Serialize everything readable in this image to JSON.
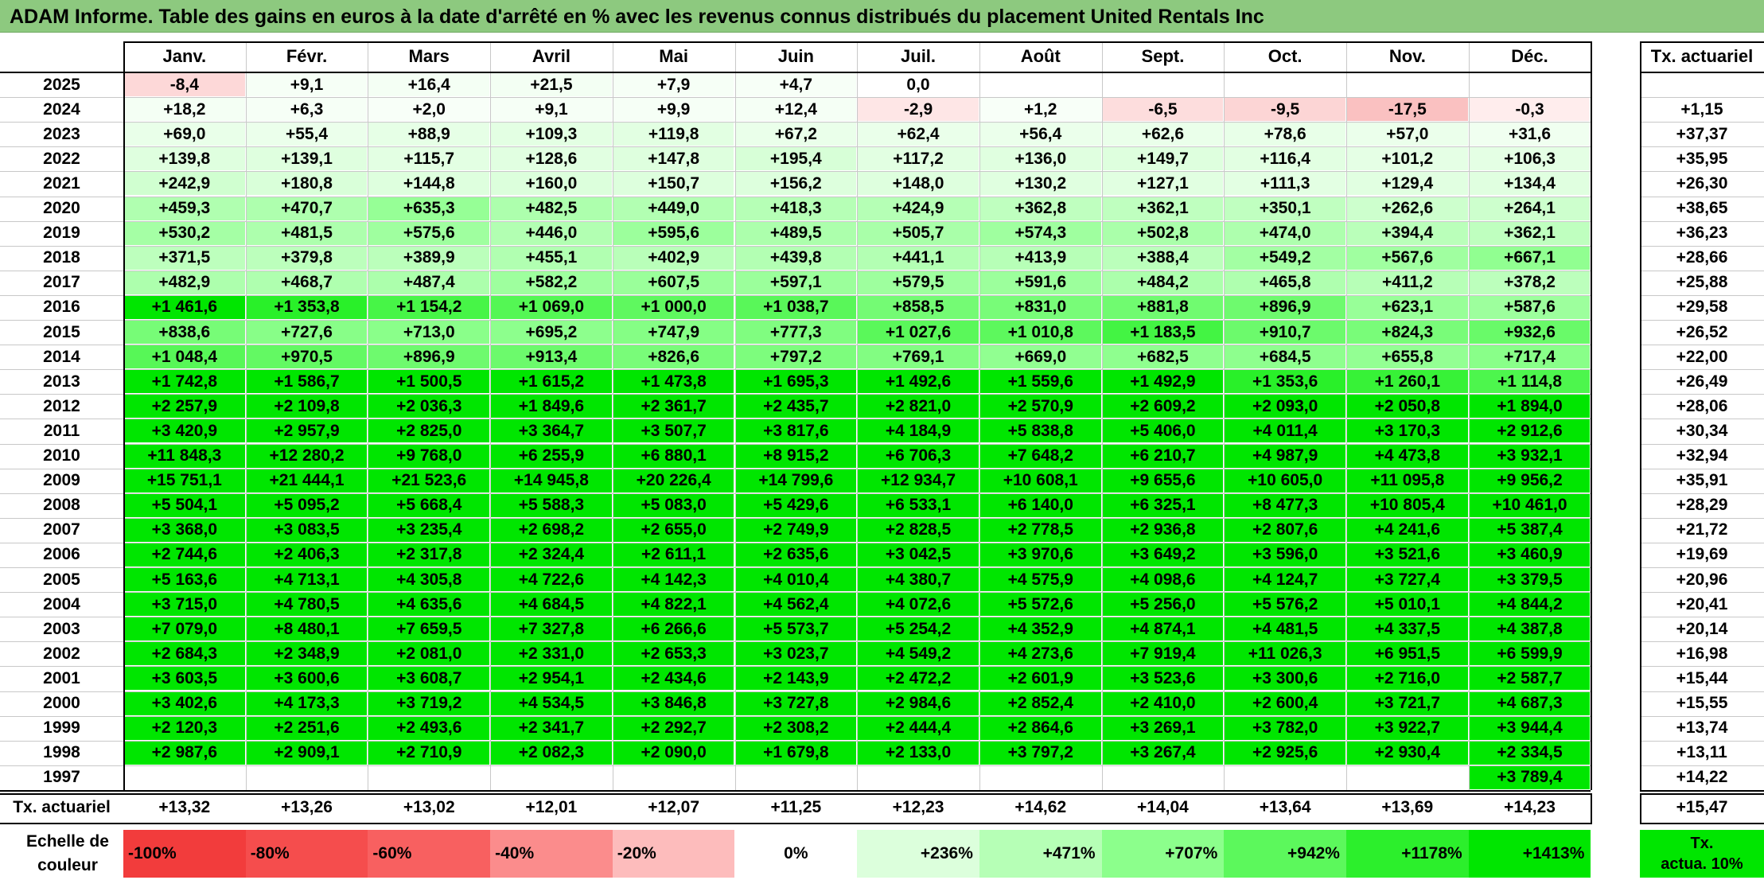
{
  "title": "ADAM Informe. Table des gains en euros à la date d'arrêté en % avec les revenus connus distribués du placement United Rentals Inc",
  "colors": {
    "title_bg": "#8dc97f",
    "neg_strong": "#f23c3c",
    "neg_light": "#ffe8e8",
    "pos_light": "#eaffea",
    "pos_strong": "#00e600"
  },
  "chart_data": {
    "type": "heatmap",
    "title": "ADAM Informe. Table des gains en euros à la date d'arrêté en % avec les revenus connus distribués du placement United Rentals Inc",
    "columns": [
      "Janv.",
      "Févr.",
      "Mars",
      "Avril",
      "Mai",
      "Juin",
      "Juil.",
      "Août",
      "Sept.",
      "Oct.",
      "Nov.",
      "Déc."
    ],
    "tx_header": "Tx. actuariel",
    "rows": [
      {
        "year": "2025",
        "cells": [
          "-8,4",
          "+9,1",
          "+16,4",
          "+21,5",
          "+7,9",
          "+4,7",
          "0,0",
          "",
          "",
          "",
          "",
          ""
        ],
        "tx": ""
      },
      {
        "year": "2024",
        "cells": [
          "+18,2",
          "+6,3",
          "+2,0",
          "+9,1",
          "+9,9",
          "+12,4",
          "-2,9",
          "+1,2",
          "-6,5",
          "-9,5",
          "-17,5",
          "-0,3"
        ],
        "tx": "+1,15"
      },
      {
        "year": "2023",
        "cells": [
          "+69,0",
          "+55,4",
          "+88,9",
          "+109,3",
          "+119,8",
          "+67,2",
          "+62,4",
          "+56,4",
          "+62,6",
          "+78,6",
          "+57,0",
          "+31,6"
        ],
        "tx": "+37,37"
      },
      {
        "year": "2022",
        "cells": [
          "+139,8",
          "+139,1",
          "+115,7",
          "+128,6",
          "+147,8",
          "+195,4",
          "+117,2",
          "+136,0",
          "+149,7",
          "+116,4",
          "+101,2",
          "+106,3"
        ],
        "tx": "+35,95"
      },
      {
        "year": "2021",
        "cells": [
          "+242,9",
          "+180,8",
          "+144,8",
          "+160,0",
          "+150,7",
          "+156,2",
          "+148,0",
          "+130,2",
          "+127,1",
          "+111,3",
          "+129,4",
          "+134,4"
        ],
        "tx": "+26,30"
      },
      {
        "year": "2020",
        "cells": [
          "+459,3",
          "+470,7",
          "+635,3",
          "+482,5",
          "+449,0",
          "+418,3",
          "+424,9",
          "+362,8",
          "+362,1",
          "+350,1",
          "+262,6",
          "+264,1"
        ],
        "tx": "+38,65"
      },
      {
        "year": "2019",
        "cells": [
          "+530,2",
          "+481,5",
          "+575,6",
          "+446,0",
          "+595,6",
          "+489,5",
          "+505,7",
          "+574,3",
          "+502,8",
          "+474,0",
          "+394,4",
          "+362,1"
        ],
        "tx": "+36,23"
      },
      {
        "year": "2018",
        "cells": [
          "+371,5",
          "+379,8",
          "+389,9",
          "+455,1",
          "+402,9",
          "+439,8",
          "+441,1",
          "+413,9",
          "+388,4",
          "+549,2",
          "+567,6",
          "+667,1"
        ],
        "tx": "+28,66"
      },
      {
        "year": "2017",
        "cells": [
          "+482,9",
          "+468,7",
          "+487,4",
          "+582,2",
          "+607,5",
          "+597,1",
          "+579,5",
          "+591,6",
          "+484,2",
          "+465,8",
          "+411,2",
          "+378,2"
        ],
        "tx": "+25,88"
      },
      {
        "year": "2016",
        "cells": [
          "+1 461,6",
          "+1 353,8",
          "+1 154,2",
          "+1 069,0",
          "+1 000,0",
          "+1 038,7",
          "+858,5",
          "+831,0",
          "+881,8",
          "+896,9",
          "+623,1",
          "+587,6"
        ],
        "tx": "+29,58"
      },
      {
        "year": "2015",
        "cells": [
          "+838,6",
          "+727,6",
          "+713,0",
          "+695,2",
          "+747,9",
          "+777,3",
          "+1 027,6",
          "+1 010,8",
          "+1 183,5",
          "+910,7",
          "+824,3",
          "+932,6"
        ],
        "tx": "+26,52"
      },
      {
        "year": "2014",
        "cells": [
          "+1 048,4",
          "+970,5",
          "+896,9",
          "+913,4",
          "+826,6",
          "+797,2",
          "+769,1",
          "+669,0",
          "+682,5",
          "+684,5",
          "+655,8",
          "+717,4"
        ],
        "tx": "+22,00"
      },
      {
        "year": "2013",
        "cells": [
          "+1 742,8",
          "+1 586,7",
          "+1 500,5",
          "+1 615,2",
          "+1 473,8",
          "+1 695,3",
          "+1 492,6",
          "+1 559,6",
          "+1 492,9",
          "+1 353,6",
          "+1 260,1",
          "+1 114,8"
        ],
        "tx": "+26,49"
      },
      {
        "year": "2012",
        "cells": [
          "+2 257,9",
          "+2 109,8",
          "+2 036,3",
          "+1 849,6",
          "+2 361,7",
          "+2 435,7",
          "+2 821,0",
          "+2 570,9",
          "+2 609,2",
          "+2 093,0",
          "+2 050,8",
          "+1 894,0"
        ],
        "tx": "+28,06"
      },
      {
        "year": "2011",
        "cells": [
          "+3 420,9",
          "+2 957,9",
          "+2 825,0",
          "+3 364,7",
          "+3 507,7",
          "+3 817,6",
          "+4 184,9",
          "+5 838,8",
          "+5 406,0",
          "+4 011,4",
          "+3 170,3",
          "+2 912,6"
        ],
        "tx": "+30,34"
      },
      {
        "year": "2010",
        "cells": [
          "+11 848,3",
          "+12 280,2",
          "+9 768,0",
          "+6 255,9",
          "+6 880,1",
          "+8 915,2",
          "+6 706,3",
          "+7 648,2",
          "+6 210,7",
          "+4 987,9",
          "+4 473,8",
          "+3 932,1"
        ],
        "tx": "+32,94"
      },
      {
        "year": "2009",
        "cells": [
          "+15 751,1",
          "+21 444,1",
          "+21 523,6",
          "+14 945,8",
          "+20 226,4",
          "+14 799,6",
          "+12 934,7",
          "+10 608,1",
          "+9 655,6",
          "+10 605,0",
          "+11 095,8",
          "+9 956,2"
        ],
        "tx": "+35,91"
      },
      {
        "year": "2008",
        "cells": [
          "+5 504,1",
          "+5 095,2",
          "+5 668,4",
          "+5 588,3",
          "+5 083,0",
          "+5 429,6",
          "+6 533,1",
          "+6 140,0",
          "+6 325,1",
          "+8 477,3",
          "+10 805,4",
          "+10 461,0"
        ],
        "tx": "+28,29"
      },
      {
        "year": "2007",
        "cells": [
          "+3 368,0",
          "+3 083,5",
          "+3 235,4",
          "+2 698,2",
          "+2 655,0",
          "+2 749,9",
          "+2 828,5",
          "+2 778,5",
          "+2 936,8",
          "+2 807,6",
          "+4 241,6",
          "+5 387,4"
        ],
        "tx": "+21,72"
      },
      {
        "year": "2006",
        "cells": [
          "+2 744,6",
          "+2 406,3",
          "+2 317,8",
          "+2 324,4",
          "+2 611,1",
          "+2 635,6",
          "+3 042,5",
          "+3 970,6",
          "+3 649,2",
          "+3 596,0",
          "+3 521,6",
          "+3 460,9"
        ],
        "tx": "+19,69"
      },
      {
        "year": "2005",
        "cells": [
          "+5 163,6",
          "+4 713,1",
          "+4 305,8",
          "+4 722,6",
          "+4 142,3",
          "+4 010,4",
          "+4 380,7",
          "+4 575,9",
          "+4 098,6",
          "+4 124,7",
          "+3 727,4",
          "+3 379,5"
        ],
        "tx": "+20,96"
      },
      {
        "year": "2004",
        "cells": [
          "+3 715,0",
          "+4 780,5",
          "+4 635,6",
          "+4 684,5",
          "+4 822,1",
          "+4 562,4",
          "+4 072,6",
          "+5 572,6",
          "+5 256,0",
          "+5 576,2",
          "+5 010,1",
          "+4 844,2"
        ],
        "tx": "+20,41"
      },
      {
        "year": "2003",
        "cells": [
          "+7 079,0",
          "+8 480,1",
          "+7 659,5",
          "+7 327,8",
          "+6 266,6",
          "+5 573,7",
          "+5 254,2",
          "+4 352,9",
          "+4 874,1",
          "+4 481,5",
          "+4 337,5",
          "+4 387,8"
        ],
        "tx": "+20,14"
      },
      {
        "year": "2002",
        "cells": [
          "+2 684,3",
          "+2 348,9",
          "+2 081,0",
          "+2 331,0",
          "+2 653,3",
          "+3 023,7",
          "+4 549,2",
          "+4 273,6",
          "+7 919,4",
          "+11 026,3",
          "+6 951,5",
          "+6 599,9"
        ],
        "tx": "+16,98"
      },
      {
        "year": "2001",
        "cells": [
          "+3 603,5",
          "+3 600,6",
          "+3 608,7",
          "+2 954,1",
          "+2 434,6",
          "+2 143,9",
          "+2 472,2",
          "+2 601,9",
          "+3 523,6",
          "+3 300,6",
          "+2 716,0",
          "+2 587,7"
        ],
        "tx": "+15,44"
      },
      {
        "year": "2000",
        "cells": [
          "+3 402,6",
          "+4 173,3",
          "+3 719,2",
          "+4 534,5",
          "+3 846,8",
          "+3 727,8",
          "+2 984,6",
          "+2 852,4",
          "+2 410,0",
          "+2 600,4",
          "+3 721,7",
          "+4 687,3"
        ],
        "tx": "+15,55"
      },
      {
        "year": "1999",
        "cells": [
          "+2 120,3",
          "+2 251,6",
          "+2 493,6",
          "+2 341,7",
          "+2 292,7",
          "+2 308,2",
          "+2 444,4",
          "+2 864,6",
          "+3 269,1",
          "+3 782,0",
          "+3 922,7",
          "+3 944,4"
        ],
        "tx": "+13,74"
      },
      {
        "year": "1998",
        "cells": [
          "+2 987,6",
          "+2 909,1",
          "+2 710,9",
          "+2 082,3",
          "+2 090,0",
          "+1 679,8",
          "+2 133,0",
          "+3 797,2",
          "+3 267,4",
          "+2 925,6",
          "+2 930,4",
          "+2 334,5"
        ],
        "tx": "+13,11"
      },
      {
        "year": "1997",
        "cells": [
          "",
          "",
          "",
          "",
          "",
          "",
          "",
          "",
          "",
          "",
          "",
          "+3 789,4"
        ],
        "tx": "+14,22"
      }
    ],
    "footer": {
      "label": "Tx. actuariel",
      "cells": [
        "+13,32",
        "+13,26",
        "+13,02",
        "+12,01",
        "+12,07",
        "+11,25",
        "+12,23",
        "+14,62",
        "+14,04",
        "+13,64",
        "+13,69",
        "+14,23"
      ],
      "tx": "+15,47"
    },
    "scale": {
      "label_line1": "Echelle de",
      "label_line2": "couleur",
      "steps": [
        {
          "label": "-100%",
          "value": -100,
          "color": "#f23c3c"
        },
        {
          "label": "-80%",
          "value": -80,
          "color": "#f54d4d"
        },
        {
          "label": "-60%",
          "value": -60,
          "color": "#f86060"
        },
        {
          "label": "-40%",
          "value": -40,
          "color": "#fb8c8c"
        },
        {
          "label": "-20%",
          "value": -20,
          "color": "#fdbcbc"
        },
        {
          "label": "0%",
          "value": 0,
          "color": "#ffffff"
        },
        {
          "label": "+236%",
          "value": 236,
          "color": "#dcffdc"
        },
        {
          "label": "+471%",
          "value": 471,
          "color": "#b6ffb6"
        },
        {
          "label": "+707%",
          "value": 707,
          "color": "#8cff8c"
        },
        {
          "label": "+942%",
          "value": 942,
          "color": "#5cf85c"
        },
        {
          "label": "+1178%",
          "value": 1178,
          "color": "#2cef2c"
        },
        {
          "label": "+1413%",
          "value": 1413,
          "color": "#00e600"
        }
      ],
      "tx_swatch_line1": "Tx.",
      "tx_swatch_line2": "actua. 10%",
      "tx_swatch_color": "#00e600"
    }
  }
}
